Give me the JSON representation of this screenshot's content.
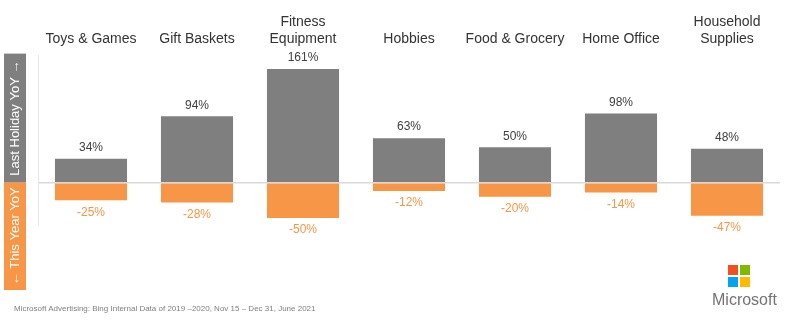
{
  "chart_data": {
    "type": "bar",
    "categories": [
      "Toys & Games",
      "Gift Baskets",
      "Fitness Equipment",
      "Hobbies",
      "Food & Grocery",
      "Home Office",
      "Household Supplies"
    ],
    "series": [
      {
        "name": "Last Holiday YoY →",
        "color": "#7f7f7f",
        "values": [
          34,
          94,
          161,
          63,
          50,
          98,
          48
        ],
        "value_labels": [
          "34%",
          "94%",
          "161%",
          "63%",
          "50%",
          "98%",
          "48%"
        ]
      },
      {
        "name": "← This Year YoY",
        "color": "#f79646",
        "values": [
          -25,
          -28,
          -50,
          -12,
          -20,
          -14,
          -47
        ],
        "value_labels": [
          "-25%",
          "-28%",
          "-50%",
          "-12%",
          "-20%",
          "-14%",
          "-47%"
        ]
      }
    ],
    "ylim": [
      -60,
      180
    ],
    "yticks": [
      0
    ],
    "grid": true,
    "stacked": true,
    "data_labels": true,
    "tick_labels": "x",
    "annotations": [
      "Microsoft Advertising: Bing Internal Data of 2019 –2020, Nov 15 – Dec 31, June 2021",
      "Microsoft"
    ]
  }
}
